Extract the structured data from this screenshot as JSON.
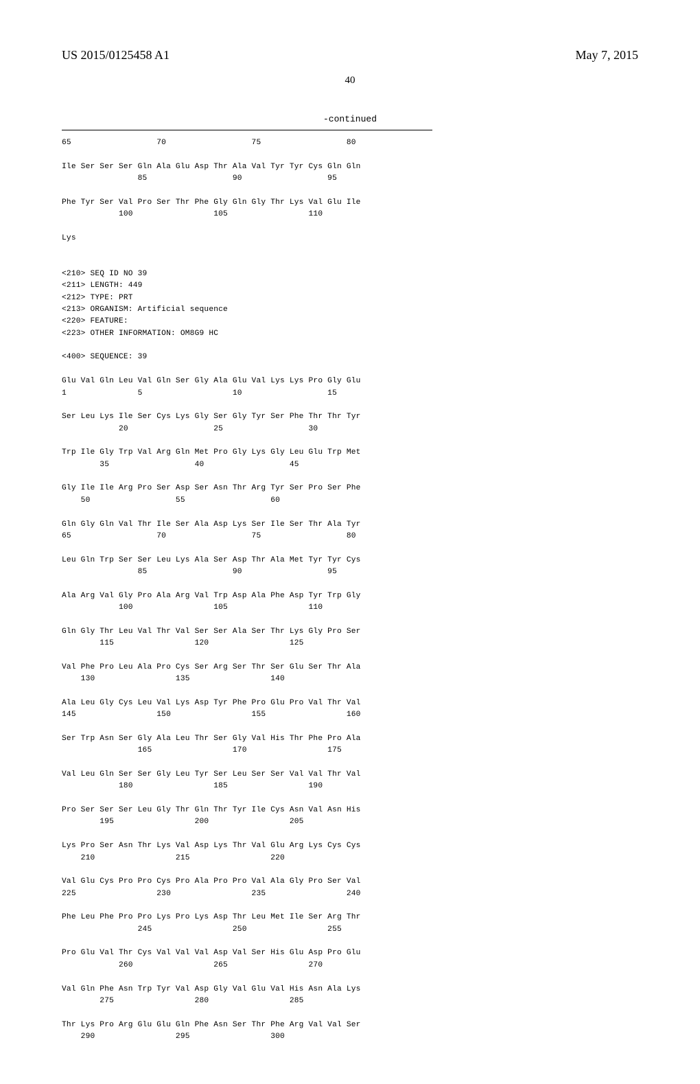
{
  "header": {
    "pub_number": "US 2015/0125458 A1",
    "pub_date": "May 7, 2015",
    "page_num": "40",
    "continued_label": "-continued"
  },
  "top_block": {
    "row1": "65                  70                  75                  80",
    "row2": "Ile Ser Ser Ser Gln Ala Glu Asp Thr Ala Val Tyr Tyr Cys Gln Gln",
    "row3": "                85                  90                  95",
    "row4": "Phe Tyr Ser Val Pro Ser Thr Phe Gly Gln Gly Thr Lys Val Glu Ile",
    "row5": "            100                 105                 110",
    "row6": "Lys"
  },
  "seq_header": {
    "l1": "<210> SEQ ID NO 39",
    "l2": "<211> LENGTH: 449",
    "l3": "<212> TYPE: PRT",
    "l4": "<213> ORGANISM: Artificial sequence",
    "l5": "<220> FEATURE:",
    "l6": "<223> OTHER INFORMATION: OM8G9 HC",
    "l7": "<400> SEQUENCE: 39"
  },
  "seq_rows": [
    {
      "aa": "Glu Val Gln Leu Val Gln Ser Gly Ala Glu Val Lys Lys Pro Gly Glu",
      "num": "1               5                   10                  15"
    },
    {
      "aa": "Ser Leu Lys Ile Ser Cys Lys Gly Ser Gly Tyr Ser Phe Thr Thr Tyr",
      "num": "            20                  25                  30"
    },
    {
      "aa": "Trp Ile Gly Trp Val Arg Gln Met Pro Gly Lys Gly Leu Glu Trp Met",
      "num": "        35                  40                  45"
    },
    {
      "aa": "Gly Ile Ile Arg Pro Ser Asp Ser Asn Thr Arg Tyr Ser Pro Ser Phe",
      "num": "    50                  55                  60"
    },
    {
      "aa": "Gln Gly Gln Val Thr Ile Ser Ala Asp Lys Ser Ile Ser Thr Ala Tyr",
      "num": "65                  70                  75                  80"
    },
    {
      "aa": "Leu Gln Trp Ser Ser Leu Lys Ala Ser Asp Thr Ala Met Tyr Tyr Cys",
      "num": "                85                  90                  95"
    },
    {
      "aa": "Ala Arg Val Gly Pro Ala Arg Val Trp Asp Ala Phe Asp Tyr Trp Gly",
      "num": "            100                 105                 110"
    },
    {
      "aa": "Gln Gly Thr Leu Val Thr Val Ser Ser Ala Ser Thr Lys Gly Pro Ser",
      "num": "        115                 120                 125"
    },
    {
      "aa": "Val Phe Pro Leu Ala Pro Cys Ser Arg Ser Thr Ser Glu Ser Thr Ala",
      "num": "    130                 135                 140"
    },
    {
      "aa": "Ala Leu Gly Cys Leu Val Lys Asp Tyr Phe Pro Glu Pro Val Thr Val",
      "num": "145                 150                 155                 160"
    },
    {
      "aa": "Ser Trp Asn Ser Gly Ala Leu Thr Ser Gly Val His Thr Phe Pro Ala",
      "num": "                165                 170                 175"
    },
    {
      "aa": "Val Leu Gln Ser Ser Gly Leu Tyr Ser Leu Ser Ser Val Val Thr Val",
      "num": "            180                 185                 190"
    },
    {
      "aa": "Pro Ser Ser Ser Leu Gly Thr Gln Thr Tyr Ile Cys Asn Val Asn His",
      "num": "        195                 200                 205"
    },
    {
      "aa": "Lys Pro Ser Asn Thr Lys Val Asp Lys Thr Val Glu Arg Lys Cys Cys",
      "num": "    210                 215                 220"
    },
    {
      "aa": "Val Glu Cys Pro Pro Cys Pro Ala Pro Pro Val Ala Gly Pro Ser Val",
      "num": "225                 230                 235                 240"
    },
    {
      "aa": "Phe Leu Phe Pro Pro Lys Pro Lys Asp Thr Leu Met Ile Ser Arg Thr",
      "num": "                245                 250                 255"
    },
    {
      "aa": "Pro Glu Val Thr Cys Val Val Val Asp Val Ser His Glu Asp Pro Glu",
      "num": "            260                 265                 270"
    },
    {
      "aa": "Val Gln Phe Asn Trp Tyr Val Asp Gly Val Glu Val His Asn Ala Lys",
      "num": "        275                 280                 285"
    },
    {
      "aa": "Thr Lys Pro Arg Glu Glu Gln Phe Asn Ser Thr Phe Arg Val Val Ser",
      "num": "    290                 295                 300"
    }
  ]
}
